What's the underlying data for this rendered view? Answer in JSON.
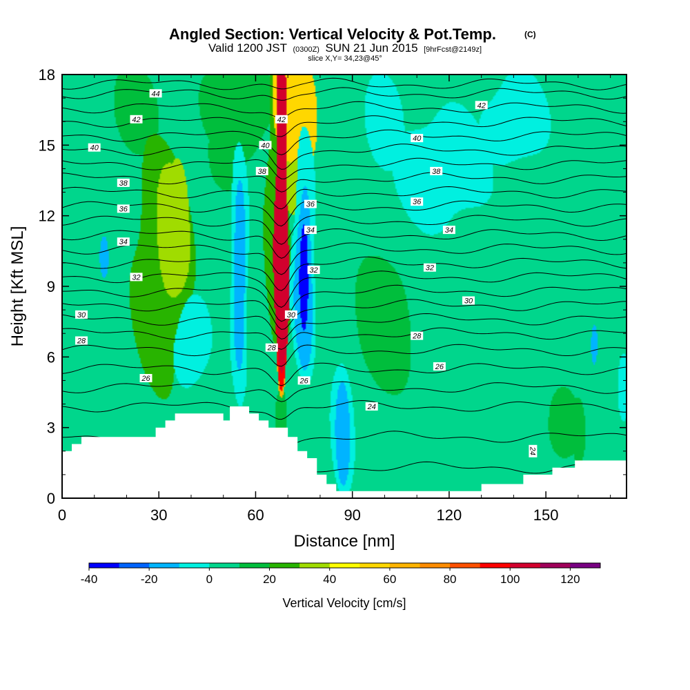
{
  "chart_data": {
    "type": "heatmap",
    "title": {
      "main": "Angled Section: Vertical Velocity & Pot.Temp.",
      "copyright": "(C)",
      "valid_prefix": "Valid 1200 JST",
      "valid_z": "(0300Z)",
      "valid_date": "SUN 21 Jun 2015",
      "fcst": "[9hrFcst@2149z]",
      "slice": "slice X,Y= 34,23@45°"
    },
    "xlabel": "Distance [nm]",
    "ylabel": "Height [Kft MSL]",
    "xlim": [
      0,
      175
    ],
    "ylim": [
      0,
      18
    ],
    "xticks": [
      0,
      30,
      60,
      90,
      120,
      150
    ],
    "yticks": [
      0,
      3,
      6,
      9,
      12,
      15,
      18
    ],
    "colorbar": {
      "label": "Vertical Velocity [cm/s]",
      "min": -40,
      "max": 130,
      "step": 10,
      "ticks": [
        -40,
        -20,
        0,
        20,
        40,
        60,
        80,
        100,
        120
      ],
      "colors": [
        "#0000ff",
        "#0064ff",
        "#00b4ff",
        "#00f0e0",
        "#00d68c",
        "#00be3c",
        "#28b400",
        "#a0dc00",
        "#ffff00",
        "#ffd700",
        "#ffb400",
        "#ff8c00",
        "#ff5000",
        "#ff0000",
        "#d2002d",
        "#a0005a",
        "#780082"
      ]
    },
    "velocity_field": {
      "background": 2,
      "features": [
        {
          "x": 68,
          "y": 11,
          "rx": 2.2,
          "ry": 7,
          "value": 100
        },
        {
          "x": 68,
          "y": 7,
          "rx": 1.8,
          "ry": 3,
          "value": 95
        },
        {
          "x": 70,
          "y": 16.5,
          "rx": 5,
          "ry": 2.5,
          "value": 55
        },
        {
          "x": 76,
          "y": 16.5,
          "rx": 3,
          "ry": 2,
          "value": 50
        },
        {
          "x": 72,
          "y": 14.5,
          "rx": 5,
          "ry": 3,
          "value": 35
        },
        {
          "x": 68,
          "y": 5.5,
          "rx": 1.5,
          "ry": 1.5,
          "value": 60
        },
        {
          "x": 67,
          "y": 12,
          "rx": 4,
          "ry": 7,
          "value": 22
        },
        {
          "x": 68,
          "y": 3.5,
          "rx": 2,
          "ry": 1.5,
          "value": 18
        },
        {
          "x": 34,
          "y": 11,
          "rx": 5,
          "ry": 3,
          "value": 38
        },
        {
          "x": 31,
          "y": 10,
          "rx": 9,
          "ry": 5,
          "value": 22
        },
        {
          "x": 36,
          "y": 12.5,
          "rx": 3,
          "ry": 2,
          "value": 32
        },
        {
          "x": 27,
          "y": 9,
          "rx": 5,
          "ry": 2.5,
          "value": 16
        },
        {
          "x": 23,
          "y": 16.5,
          "rx": 7,
          "ry": 1.8,
          "value": 12
        },
        {
          "x": 55,
          "y": 16.5,
          "rx": 12,
          "ry": 2,
          "value": 14
        },
        {
          "x": 50,
          "y": 14.5,
          "rx": 5,
          "ry": 1.5,
          "value": 12
        },
        {
          "x": 100,
          "y": 7.5,
          "rx": 9,
          "ry": 3,
          "value": 10
        },
        {
          "x": 110,
          "y": 4,
          "rx": 8,
          "ry": 2.5,
          "value": 8
        },
        {
          "x": 140,
          "y": 5,
          "rx": 10,
          "ry": 3,
          "value": 8
        },
        {
          "x": 152,
          "y": 9,
          "rx": 5,
          "ry": 4,
          "value": 9
        },
        {
          "x": 165,
          "y": 10,
          "rx": 8,
          "ry": 4,
          "value": 9
        },
        {
          "x": 160,
          "y": 2.8,
          "rx": 2,
          "ry": 1.3,
          "value": 18
        },
        {
          "x": 155,
          "y": 3,
          "rx": 5,
          "ry": 1.5,
          "value": 10
        },
        {
          "x": 5,
          "y": 5,
          "rx": 7,
          "ry": 2.5,
          "value": 9
        },
        {
          "x": 3,
          "y": 11,
          "rx": 4,
          "ry": 3,
          "value": 8
        },
        {
          "x": 125,
          "y": 12,
          "rx": 12,
          "ry": 4,
          "value": 6
        },
        {
          "x": 112,
          "y": 10,
          "rx": 8,
          "ry": 2.5,
          "value": 7
        },
        {
          "x": 100,
          "y": 16,
          "rx": 6,
          "ry": 2,
          "value": -5
        },
        {
          "x": 140,
          "y": 16,
          "rx": 10,
          "ry": 2,
          "value": -5
        },
        {
          "x": 118,
          "y": 14,
          "rx": 14,
          "ry": 2.5,
          "value": -4
        },
        {
          "x": 40,
          "y": 6.5,
          "rx": 6,
          "ry": 2,
          "value": -3
        },
        {
          "x": 75,
          "y": 9.8,
          "rx": 1.4,
          "ry": 2.3,
          "value": -35
        },
        {
          "x": 75,
          "y": 9.6,
          "rx": 2.8,
          "ry": 3.8,
          "value": -20
        },
        {
          "x": 75,
          "y": 10,
          "rx": 4,
          "ry": 5,
          "value": -8
        },
        {
          "x": 55,
          "y": 9.5,
          "rx": 2,
          "ry": 3.5,
          "value": -15
        },
        {
          "x": 55,
          "y": 9.5,
          "rx": 3,
          "ry": 5,
          "value": -6
        },
        {
          "x": 87,
          "y": 2.8,
          "rx": 2,
          "ry": 2.2,
          "value": -15
        },
        {
          "x": 87,
          "y": 3,
          "rx": 3.5,
          "ry": 3,
          "value": -6
        },
        {
          "x": 13,
          "y": 10.2,
          "rx": 1.2,
          "ry": 0.8,
          "value": -12
        },
        {
          "x": 165,
          "y": 6.5,
          "rx": 1.2,
          "ry": 1,
          "value": -12
        },
        {
          "x": 174,
          "y": 4.5,
          "rx": 2,
          "ry": 1.5,
          "value": -10
        }
      ]
    },
    "terrain": [
      [
        0,
        2
      ],
      [
        3,
        2
      ],
      [
        3,
        2.3
      ],
      [
        6,
        2.3
      ],
      [
        6,
        2.6
      ],
      [
        29,
        2.6
      ],
      [
        29,
        3
      ],
      [
        32,
        3
      ],
      [
        32,
        3.3
      ],
      [
        35,
        3.3
      ],
      [
        35,
        3.6
      ],
      [
        50,
        3.6
      ],
      [
        50,
        3.3
      ],
      [
        52,
        3.3
      ],
      [
        52,
        3.9
      ],
      [
        58,
        3.9
      ],
      [
        58,
        3.6
      ],
      [
        61,
        3.6
      ],
      [
        61,
        3.3
      ],
      [
        64,
        3.3
      ],
      [
        64,
        3
      ],
      [
        70,
        3
      ],
      [
        70,
        2.6
      ],
      [
        73,
        2.6
      ],
      [
        73,
        2
      ],
      [
        76,
        2
      ],
      [
        76,
        1.7
      ],
      [
        79,
        1.7
      ],
      [
        79,
        1
      ],
      [
        82,
        1
      ],
      [
        82,
        0.6
      ],
      [
        85,
        0.6
      ],
      [
        85,
        0.3
      ],
      [
        130,
        0.3
      ],
      [
        130,
        0.6
      ],
      [
        143,
        0.6
      ],
      [
        143,
        1
      ],
      [
        152,
        1
      ],
      [
        152,
        1.3
      ],
      [
        159,
        1.3
      ],
      [
        159,
        1.6
      ],
      [
        175,
        1.6
      ]
    ],
    "theta_contours": {
      "lines": [
        {
          "z0": 1.3,
          "dz": 0.25
        },
        {
          "z0": 2.6,
          "dz": 0.3
        },
        {
          "z0": 3.9,
          "dz": 0.5
        },
        {
          "z0": 4.7,
          "dz": 0.6
        },
        {
          "z0": 5.5,
          "dz": 0.7
        },
        {
          "z0": 6.3,
          "dz": 0.8
        },
        {
          "z0": 7.0,
          "dz": 0.9
        },
        {
          "z0": 7.6,
          "dz": 1.0
        },
        {
          "z0": 8.2,
          "dz": 1.0
        },
        {
          "z0": 8.8,
          "dz": 1.1
        },
        {
          "z0": 9.4,
          "dz": 1.1
        },
        {
          "z0": 10.0,
          "dz": 1.1
        },
        {
          "z0": 10.6,
          "dz": 1.1
        },
        {
          "z0": 11.2,
          "dz": 1.0
        },
        {
          "z0": 11.8,
          "dz": 1.0
        },
        {
          "z0": 12.4,
          "dz": 0.9
        },
        {
          "z0": 13.0,
          "dz": 0.9
        },
        {
          "z0": 13.6,
          "dz": 0.8
        },
        {
          "z0": 14.2,
          "dz": 0.7
        },
        {
          "z0": 14.8,
          "dz": 0.7
        },
        {
          "z0": 15.4,
          "dz": 0.6
        },
        {
          "z0": 16.0,
          "dz": 0.5
        },
        {
          "z0": 16.6,
          "dz": 0.4
        },
        {
          "z0": 17.2,
          "dz": 0.3
        },
        {
          "z0": 17.6,
          "dz": 0.2
        }
      ],
      "labels": [
        {
          "text": "44",
          "x": 29,
          "y": 17.2
        },
        {
          "text": "42",
          "x": 23,
          "y": 16.1
        },
        {
          "text": "40",
          "x": 10,
          "y": 14.9
        },
        {
          "text": "38",
          "x": 19,
          "y": 13.4
        },
        {
          "text": "36",
          "x": 19,
          "y": 12.3
        },
        {
          "text": "34",
          "x": 19,
          "y": 10.9
        },
        {
          "text": "32",
          "x": 23,
          "y": 9.4
        },
        {
          "text": "30",
          "x": 6,
          "y": 7.8
        },
        {
          "text": "28",
          "x": 6,
          "y": 6.7
        },
        {
          "text": "26",
          "x": 26,
          "y": 5.1
        },
        {
          "text": "42",
          "x": 68,
          "y": 16.1
        },
        {
          "text": "40",
          "x": 63,
          "y": 15
        },
        {
          "text": "38",
          "x": 62,
          "y": 13.9
        },
        {
          "text": "36",
          "x": 77,
          "y": 12.5
        },
        {
          "text": "34",
          "x": 77,
          "y": 11.4
        },
        {
          "text": "32",
          "x": 78,
          "y": 9.7
        },
        {
          "text": "30",
          "x": 71,
          "y": 7.8
        },
        {
          "text": "28",
          "x": 65,
          "y": 6.4
        },
        {
          "text": "26",
          "x": 75,
          "y": 5
        },
        {
          "text": "24",
          "x": 96,
          "y": 3.9
        },
        {
          "text": "42",
          "x": 130,
          "y": 16.7
        },
        {
          "text": "40",
          "x": 110,
          "y": 15.3
        },
        {
          "text": "38",
          "x": 116,
          "y": 13.9
        },
        {
          "text": "36",
          "x": 110,
          "y": 12.6
        },
        {
          "text": "34",
          "x": 120,
          "y": 11.4
        },
        {
          "text": "32",
          "x": 114,
          "y": 9.8
        },
        {
          "text": "30",
          "x": 126,
          "y": 8.4
        },
        {
          "text": "28",
          "x": 110,
          "y": 6.9
        },
        {
          "text": "26",
          "x": 117,
          "y": 5.6
        },
        {
          "text": "24",
          "x": 146,
          "y": 2,
          "rot": 90
        }
      ]
    }
  }
}
